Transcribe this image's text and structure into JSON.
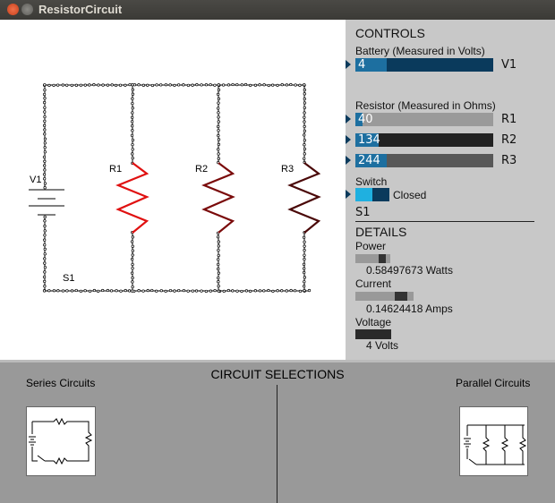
{
  "window": {
    "title": "ResistorCircuit"
  },
  "circuit": {
    "battery_label": "V1",
    "switch_label": "S1",
    "resistors": [
      {
        "label": "R1",
        "color": "#e01010"
      },
      {
        "label": "R2",
        "color": "#7a0a0a"
      },
      {
        "label": "R3",
        "color": "#4a0808"
      }
    ]
  },
  "controls": {
    "heading": "CONTROLS",
    "battery_label": "Battery (Measured in Volts)",
    "battery": {
      "value": "4",
      "tag": "V1",
      "fraction": 0.23
    },
    "resistor_label": "Resistor (Measured in Ohms)",
    "resistors": [
      {
        "value": "40",
        "tag": "R1",
        "fraction": 0.05
      },
      {
        "value": "134",
        "tag": "R2",
        "fraction": 0.17
      },
      {
        "value": "244",
        "tag": "R3",
        "fraction": 0.23
      }
    ],
    "switch_label": "Switch",
    "switch_state": "Closed",
    "switch_tag": "S1"
  },
  "details": {
    "heading": "DETAILS",
    "power_label": "Power",
    "power_value": "0.58497673 Watts",
    "current_label": "Current",
    "current_value": "0.14624418 Amps",
    "voltage_label": "Voltage",
    "voltage_value": "4 Volts"
  },
  "selections": {
    "heading": "CIRCUIT SELECTIONS",
    "series_label": "Series Circuits",
    "parallel_label": "Parallel Circuits"
  },
  "colors": {
    "slider_dark": "#0a3a5c",
    "slider_fill": "#1d6fa0",
    "switch_on": "#1fb0e0"
  }
}
